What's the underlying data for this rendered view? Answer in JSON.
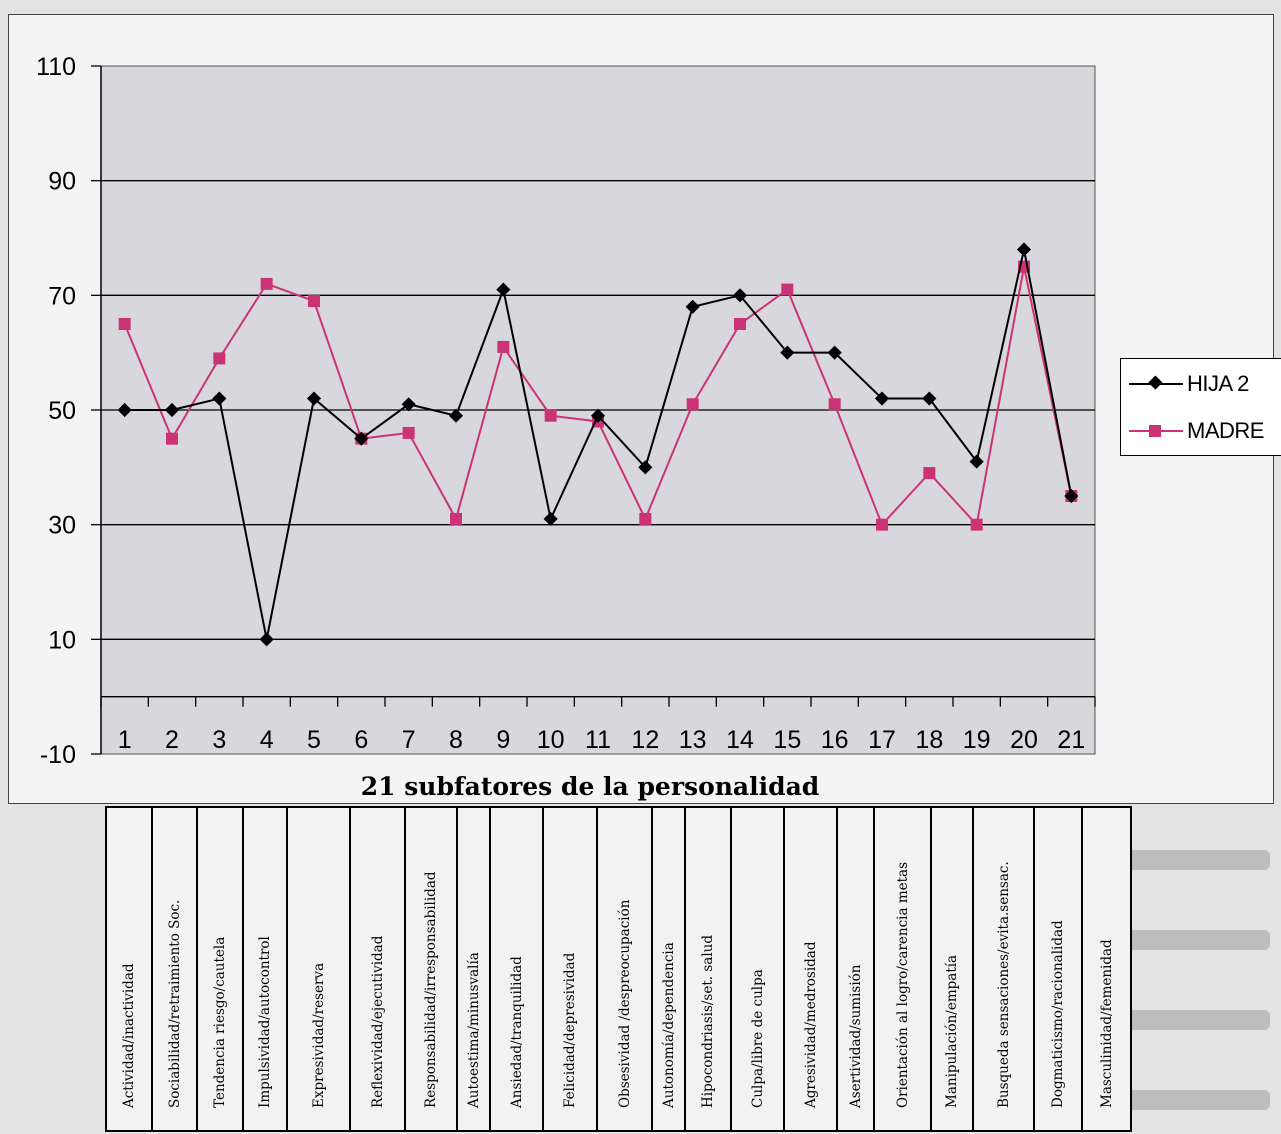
{
  "chart_data": {
    "type": "line",
    "title": "",
    "xlabel": "21 subfatores de la personalidad",
    "ylabel": "",
    "categories": [
      "1",
      "2",
      "3",
      "4",
      "5",
      "6",
      "7",
      "8",
      "9",
      "10",
      "11",
      "12",
      "13",
      "14",
      "15",
      "16",
      "17",
      "18",
      "19",
      "20",
      "21"
    ],
    "ylim": [
      -10,
      110
    ],
    "yticks": [
      110,
      90,
      70,
      50,
      30,
      10,
      -10
    ],
    "grid": true,
    "legend_position": "right",
    "series": [
      {
        "name": "HIJA 2",
        "color": "#000000",
        "marker": "diamond",
        "values": [
          50,
          50,
          52,
          10,
          52,
          45,
          51,
          49,
          71,
          31,
          49,
          40,
          68,
          70,
          60,
          60,
          52,
          52,
          41,
          78,
          35
        ]
      },
      {
        "name": "MADRE",
        "color": "#cc3377",
        "marker": "square",
        "values": [
          65,
          45,
          59,
          72,
          69,
          45,
          46,
          31,
          61,
          49,
          48,
          31,
          51,
          65,
          71,
          51,
          30,
          39,
          30,
          75,
          35
        ]
      }
    ],
    "factor_labels": [
      "Actividad/inactividad",
      "Sociabilidad/retraimiento Soc.",
      "Tendencia riesgo/cautela",
      "Impulsividad/autocontrol",
      "Expresividad/reserva",
      "Reflexividad/ejecutividad",
      "Responsabilidad/irresponsabilidad",
      "Autoestima/minusvalía",
      "Ansiedad/tranquilidad",
      "Felicidad/depresividad",
      "Obsesividad /despreocupación",
      "Autonomía/dependencia",
      "Hipocondriasis/set. salud",
      "Culpa/libre de culpa",
      "Agresividad/medrosidad",
      "Asertividad/sumisión",
      "Orientación al logro/carencia metas",
      "Manipulación/empatía",
      "Busqueda sensaciones/evita.sensac.",
      "Dogmaticismo/racionalidad",
      "Masculinidad/femenidad"
    ]
  },
  "colors": {
    "plot_background": "#d8d8dc",
    "gridline": "#000000",
    "madre": "#cc3377",
    "hija": "#000000"
  }
}
